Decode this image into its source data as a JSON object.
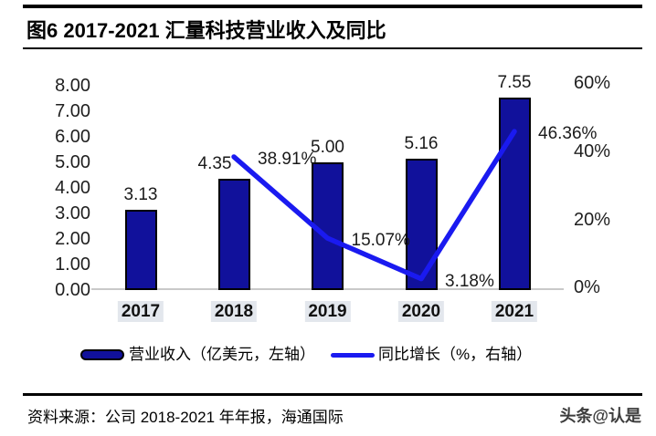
{
  "figure": {
    "title": "图6  2017-2021 汇量科技营业收入及同比"
  },
  "chart_data": {
    "type": "bar+line combo",
    "title": "2017-2021 汇量科技营业收入及同比",
    "categories": [
      "2017",
      "2018",
      "2019",
      "2020",
      "2021"
    ],
    "series": [
      {
        "name": "营业收入（亿美元，左轴）",
        "type": "bar",
        "axis": "left",
        "values": [
          3.13,
          4.35,
          5.0,
          5.16,
          7.55
        ],
        "labels": [
          "3.13",
          "4.35",
          "5.00",
          "5.16",
          "7.55"
        ],
        "color": "#11119B"
      },
      {
        "name": "同比增长（%，右轴）",
        "type": "line",
        "axis": "right",
        "values": [
          null,
          38.91,
          15.07,
          3.18,
          46.36
        ],
        "labels": [
          "",
          "38.91%",
          "15.07%",
          "3.18%",
          "46.36%"
        ],
        "color": "#1A1AF0"
      }
    ],
    "left_axis": {
      "ticks": [
        "8.00",
        "7.00",
        "6.00",
        "5.00",
        "4.00",
        "3.00",
        "2.00",
        "1.00",
        "0.00"
      ],
      "min": 0,
      "max": 8
    },
    "right_axis": {
      "ticks": [
        "60%",
        "40%",
        "20%",
        "0%"
      ],
      "tick_values": [
        60,
        40,
        20,
        0
      ],
      "min": 0,
      "max": 60
    },
    "legend_position": "bottom",
    "grid": false
  },
  "footer": {
    "source": "资料来源：公司 2018-2021 年年报，海通国际",
    "watermark": "头条@认是"
  },
  "colors": {
    "bar_fill": "#11119B",
    "bar_border": "#000000",
    "line": "#1A1AF0",
    "axis_line": "#C9C9C9",
    "year_highlight": "#E3E7ED",
    "rule": "#000000"
  }
}
